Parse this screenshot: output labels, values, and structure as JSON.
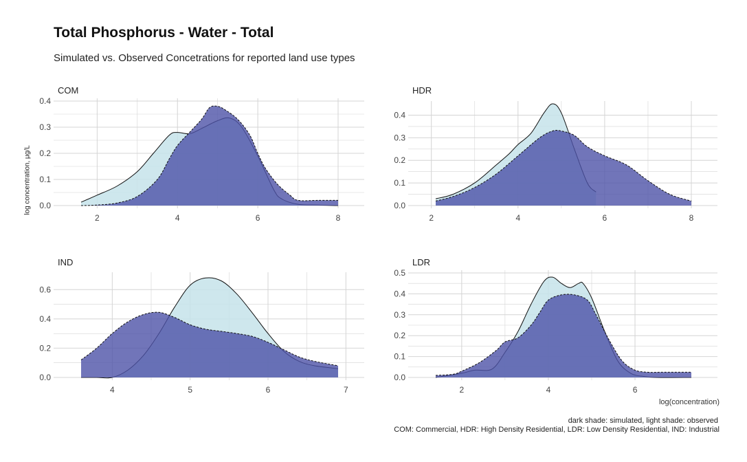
{
  "title": "Total Phosphorus - Water - Total",
  "subtitle": "Simulated vs. Observed Concetrations for reported land use types",
  "y_axis_label": "log concentration, μg/L",
  "x_axis_label": "log(concentration)",
  "caption_line1": "dark shade: simulated, light shade: observed",
  "caption_line2": "COM: Commercial, HDR: High Density Residential, LDR: Low Density Residential, IND: Industrial",
  "colors": {
    "simulated_fill": "#4d52a8",
    "observed_fill": "#c6e3ea",
    "grid": "#d4d4d4",
    "outline": "#111111"
  },
  "chart_data": [
    {
      "type": "area",
      "panel": "COM",
      "xlim": [
        1.6,
        8.0
      ],
      "ylim": [
        0,
        0.4
      ],
      "x_ticks": [
        2,
        4,
        6,
        8
      ],
      "y_ticks": [
        0.0,
        0.1,
        0.2,
        0.3,
        0.4
      ],
      "x_tick_labels": [
        "2",
        "4",
        "6",
        "8"
      ],
      "y_tick_labels": [
        "0.0",
        "0.1",
        "0.2",
        "0.3",
        "0.4"
      ],
      "series": [
        {
          "role": "observed",
          "x": [
            1.6,
            2.0,
            2.5,
            3.0,
            3.4,
            3.8,
            4.0,
            4.3,
            4.6,
            5.0,
            5.3,
            5.6,
            6.0,
            6.4,
            6.6,
            7.0,
            7.5,
            8.0
          ],
          "y": [
            0.013,
            0.04,
            0.075,
            0.13,
            0.2,
            0.27,
            0.28,
            0.275,
            0.295,
            0.325,
            0.335,
            0.3,
            0.19,
            0.06,
            0.025,
            0.005,
            0.002,
            0.0
          ]
        },
        {
          "role": "simulated",
          "x": [
            1.6,
            2.0,
            2.5,
            3.0,
            3.5,
            3.8,
            4.0,
            4.3,
            4.6,
            4.8,
            5.0,
            5.2,
            5.5,
            5.8,
            6.0,
            6.2,
            6.5,
            6.8,
            7.0,
            7.5,
            8.0
          ],
          "y": [
            0.0,
            0.002,
            0.01,
            0.035,
            0.1,
            0.18,
            0.23,
            0.28,
            0.33,
            0.375,
            0.38,
            0.365,
            0.33,
            0.27,
            0.2,
            0.14,
            0.08,
            0.04,
            0.02,
            0.02,
            0.02
          ]
        }
      ]
    },
    {
      "type": "area",
      "panel": "HDR",
      "xlim": [
        2.1,
        8.0
      ],
      "ylim": [
        0,
        0.45
      ],
      "x_ticks": [
        2,
        4,
        6,
        8
      ],
      "y_ticks": [
        0.0,
        0.1,
        0.2,
        0.3,
        0.4
      ],
      "x_tick_labels": [
        "2",
        "4",
        "6",
        "8"
      ],
      "y_tick_labels": [
        "0.0",
        "0.1",
        "0.2",
        "0.3",
        "0.4"
      ],
      "series": [
        {
          "role": "observed",
          "x": [
            2.1,
            2.5,
            3.0,
            3.5,
            3.8,
            4.0,
            4.3,
            4.6,
            4.8,
            5.0,
            5.3,
            5.6,
            5.8
          ],
          "y": [
            0.03,
            0.05,
            0.1,
            0.18,
            0.23,
            0.27,
            0.32,
            0.41,
            0.45,
            0.41,
            0.25,
            0.1,
            0.06
          ]
        },
        {
          "role": "simulated",
          "x": [
            2.1,
            2.5,
            3.0,
            3.5,
            4.0,
            4.5,
            4.8,
            5.0,
            5.3,
            5.6,
            6.0,
            6.5,
            7.0,
            7.5,
            8.0
          ],
          "y": [
            0.02,
            0.04,
            0.08,
            0.14,
            0.22,
            0.3,
            0.33,
            0.33,
            0.31,
            0.26,
            0.22,
            0.18,
            0.11,
            0.05,
            0.02
          ]
        }
      ]
    },
    {
      "type": "area",
      "panel": "IND",
      "xlim": [
        3.6,
        6.9
      ],
      "ylim": [
        0,
        0.7
      ],
      "x_ticks": [
        4,
        5,
        6,
        7
      ],
      "y_ticks": [
        0.0,
        0.2,
        0.4,
        0.6
      ],
      "x_tick_labels": [
        "4",
        "5",
        "6",
        "7"
      ],
      "y_tick_labels": [
        "0.0",
        "0.2",
        "0.4",
        "0.6"
      ],
      "series": [
        {
          "role": "observed",
          "x": [
            3.6,
            3.8,
            4.0,
            4.2,
            4.4,
            4.6,
            4.8,
            5.0,
            5.2,
            5.4,
            5.6,
            5.8,
            6.0,
            6.2,
            6.4,
            6.6,
            6.9
          ],
          "y": [
            0.0,
            0.0,
            0.0,
            0.05,
            0.15,
            0.3,
            0.48,
            0.63,
            0.68,
            0.66,
            0.57,
            0.44,
            0.3,
            0.18,
            0.11,
            0.08,
            0.06
          ]
        },
        {
          "role": "simulated",
          "x": [
            3.6,
            3.8,
            4.0,
            4.2,
            4.4,
            4.6,
            4.8,
            5.0,
            5.2,
            5.4,
            5.6,
            5.8,
            6.0,
            6.2,
            6.4,
            6.6,
            6.9
          ],
          "y": [
            0.12,
            0.2,
            0.3,
            0.38,
            0.43,
            0.445,
            0.41,
            0.36,
            0.33,
            0.315,
            0.3,
            0.28,
            0.24,
            0.19,
            0.14,
            0.11,
            0.08
          ]
        }
      ]
    },
    {
      "type": "area",
      "panel": "LDR",
      "xlim": [
        1.4,
        7.3
      ],
      "ylim": [
        0,
        0.5
      ],
      "x_ticks": [
        2,
        4,
        6
      ],
      "y_ticks": [
        0.0,
        0.1,
        0.2,
        0.3,
        0.4,
        0.5
      ],
      "x_tick_labels": [
        "2",
        "4",
        "6"
      ],
      "y_tick_labels": [
        "0.0",
        "0.1",
        "0.2",
        "0.3",
        "0.4",
        "0.5"
      ],
      "series": [
        {
          "role": "observed",
          "x": [
            1.4,
            2.0,
            2.3,
            2.7,
            3.0,
            3.3,
            3.6,
            3.9,
            4.1,
            4.3,
            4.5,
            4.7,
            4.8,
            5.0,
            5.3,
            5.6,
            5.9,
            6.2,
            6.5,
            7.3
          ],
          "y": [
            0.0,
            0.02,
            0.035,
            0.04,
            0.12,
            0.22,
            0.35,
            0.46,
            0.48,
            0.45,
            0.43,
            0.45,
            0.45,
            0.38,
            0.22,
            0.08,
            0.02,
            0.005,
            0.0,
            0.0
          ]
        },
        {
          "role": "simulated",
          "x": [
            1.4,
            1.8,
            2.0,
            2.4,
            2.8,
            3.0,
            3.3,
            3.6,
            3.8,
            4.0,
            4.3,
            4.6,
            4.9,
            5.1,
            5.4,
            5.7,
            6.0,
            6.3,
            6.6,
            7.3
          ],
          "y": [
            0.01,
            0.015,
            0.03,
            0.07,
            0.13,
            0.17,
            0.19,
            0.25,
            0.31,
            0.37,
            0.395,
            0.395,
            0.37,
            0.3,
            0.18,
            0.08,
            0.035,
            0.025,
            0.025,
            0.025
          ]
        }
      ]
    }
  ]
}
